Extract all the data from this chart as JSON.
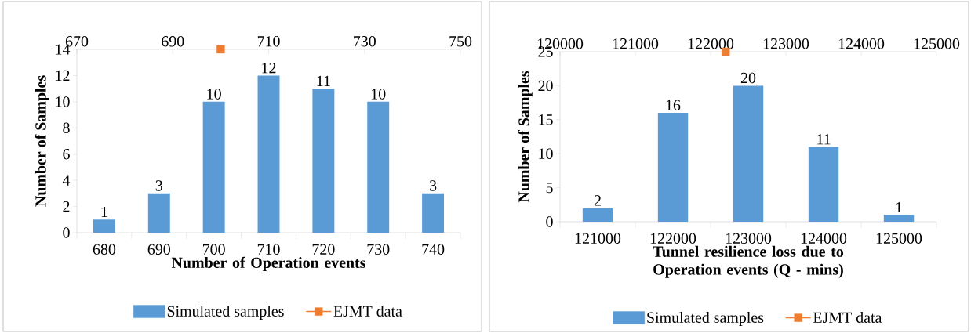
{
  "chart_data": [
    {
      "type": "bar",
      "categories": [
        "680",
        "690",
        "700",
        "710",
        "720",
        "730",
        "740"
      ],
      "xlabel": "Number of Operation events",
      "ylabel": "Number of Samples",
      "ylim": [
        0,
        14
      ],
      "yticks": [
        0,
        2,
        4,
        6,
        8,
        10,
        12,
        14
      ],
      "x2lim": [
        670,
        750
      ],
      "x2ticks": [
        670,
        690,
        710,
        730,
        750
      ],
      "legend": "bottom",
      "series": [
        {
          "name": "Simulated samples",
          "color": "#5b9bd5",
          "values": [
            1,
            3,
            10,
            12,
            11,
            10,
            3
          ],
          "value_labels": [
            "1",
            "3",
            "10",
            "12",
            "11",
            "10",
            "3"
          ]
        },
        {
          "name": "EJMT data",
          "type": "scatter",
          "axis": "x2",
          "marker": "square",
          "color": "#ed7d31",
          "x": [
            700
          ],
          "values": [
            14
          ]
        }
      ]
    },
    {
      "type": "bar",
      "categories": [
        "121000",
        "122000",
        "123000",
        "124000",
        "125000"
      ],
      "xlabel": "Tunnel resilience loss due to Operation events (Q - mins)",
      "ylabel": "Number of Samples",
      "ylim": [
        0,
        25
      ],
      "yticks": [
        0,
        5,
        10,
        15,
        20,
        25
      ],
      "x2lim": [
        120000,
        125000
      ],
      "x2ticks": [
        120000,
        121000,
        122000,
        123000,
        124000,
        125000
      ],
      "legend": "bottom",
      "series": [
        {
          "name": "Simulated samples",
          "color": "#5b9bd5",
          "values": [
            2,
            16,
            20,
            11,
            1
          ],
          "value_labels": [
            "2",
            "16",
            "20",
            "11",
            "1"
          ]
        },
        {
          "name": "EJMT data",
          "type": "scatter",
          "axis": "x2",
          "marker": "square",
          "color": "#ed7d31",
          "x": [
            122200
          ],
          "values": [
            25
          ]
        }
      ]
    }
  ]
}
